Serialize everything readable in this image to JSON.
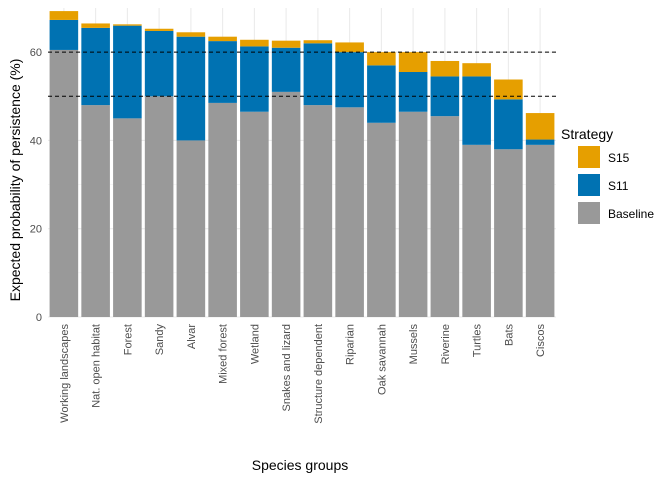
{
  "chart_data": {
    "type": "bar",
    "stacked": true,
    "xlabel": "Species groups",
    "ylabel": "Expected probability of persistence (%)",
    "ylim": [
      0,
      70
    ],
    "yticks": [
      0,
      20,
      40,
      60
    ],
    "grid": true,
    "legend_position": "right",
    "legend_title": "Strategy",
    "reference_lines": [
      50,
      60
    ],
    "categories": [
      "Working landscapes",
      "Nat. open habitat",
      "Forest",
      "Sandy",
      "Alvar",
      "Mixed forest",
      "Wetland",
      "Snakes and lizard",
      "Structure dependent",
      "Riparian",
      "Oak savannah",
      "Mussels",
      "Riverine",
      "Turtles",
      "Bats",
      "Ciscos"
    ],
    "series": [
      {
        "name": "Baseline",
        "color": "#999999",
        "values": [
          60.5,
          48,
          45,
          50,
          40,
          48.5,
          46.5,
          51,
          48,
          47.5,
          44,
          46.5,
          45.5,
          39,
          38,
          39
        ]
      },
      {
        "name": "S11",
        "color": "#0072B2",
        "values": [
          6.8,
          17.5,
          21,
          14.8,
          23.5,
          14,
          14.8,
          10,
          14,
          12.5,
          13,
          9,
          9,
          15.5,
          11.3,
          1.2
        ]
      },
      {
        "name": "S15",
        "color": "#E69F00",
        "values": [
          2,
          1,
          0.3,
          0.5,
          1,
          1,
          1.5,
          1.6,
          0.7,
          2.2,
          3,
          4.5,
          3.5,
          3,
          4.5,
          6
        ]
      }
    ],
    "legend_order": [
      "S15",
      "S11",
      "Baseline"
    ]
  }
}
